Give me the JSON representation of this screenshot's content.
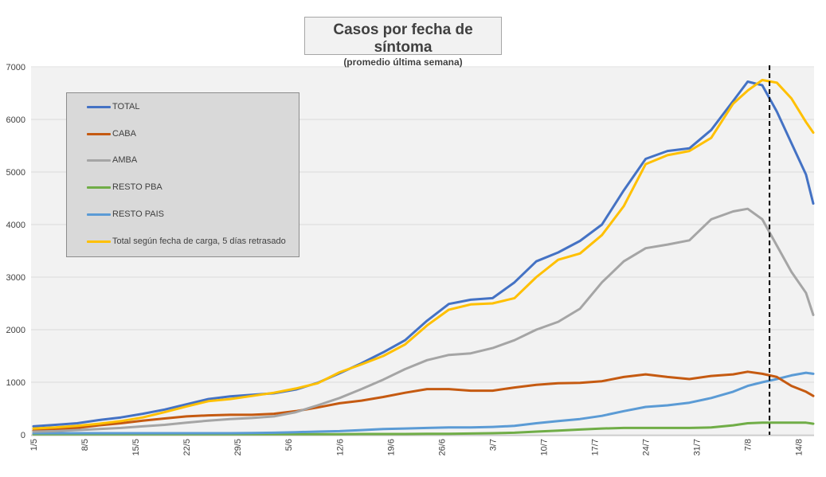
{
  "chart_data": {
    "type": "line",
    "title": "Casos por fecha de síntoma",
    "subtitle": "(promedio última semana)",
    "xlabel": "",
    "ylabel": "",
    "ylim": [
      0,
      7000
    ],
    "yticks": [
      "0",
      "1000",
      "2000",
      "3000",
      "4000",
      "5000",
      "6000",
      "7000"
    ],
    "x_range": [
      "1/5",
      "16/8"
    ],
    "xticks": [
      "1/5",
      "8/5",
      "15/5",
      "22/5",
      "29/5",
      "5/6",
      "12/6",
      "19/6",
      "26/6",
      "3/7",
      "10/7",
      "17/7",
      "24/7",
      "31/7",
      "7/8",
      "14/8"
    ],
    "grid": "horizontal",
    "legend_position": "top-left",
    "vertical_marker": "10/8",
    "x": [
      "1/5",
      "4/5",
      "7/5",
      "10/5",
      "13/5",
      "16/5",
      "19/5",
      "22/5",
      "25/5",
      "28/5",
      "31/5",
      "3/6",
      "6/6",
      "9/6",
      "12/6",
      "15/6",
      "18/6",
      "21/6",
      "24/6",
      "27/6",
      "30/6",
      "3/7",
      "6/7",
      "9/7",
      "12/7",
      "15/7",
      "18/7",
      "21/7",
      "24/7",
      "27/7",
      "30/7",
      "2/8",
      "5/8",
      "7/8",
      "9/8",
      "11/8",
      "13/8",
      "15/8",
      "16/8"
    ],
    "series": [
      {
        "name": "TOTAL",
        "color": "#4472c4",
        "values": [
          160,
          190,
          220,
          280,
          330,
          400,
          480,
          580,
          680,
          730,
          760,
          790,
          860,
          990,
          1170,
          1360,
          1570,
          1800,
          2170,
          2490,
          2570,
          2600,
          2900,
          3300,
          3470,
          3690,
          4000,
          4650,
          5250,
          5400,
          5450,
          5800,
          6350,
          6720,
          6650,
          6150,
          5550,
          4950,
          4400
        ]
      },
      {
        "name": "CABA",
        "color": "#c55a11",
        "values": [
          80,
          100,
          130,
          180,
          220,
          270,
          310,
          350,
          370,
          380,
          380,
          400,
          450,
          520,
          600,
          650,
          720,
          800,
          870,
          870,
          840,
          840,
          900,
          950,
          980,
          990,
          1020,
          1100,
          1150,
          1100,
          1060,
          1120,
          1150,
          1200,
          1160,
          1100,
          930,
          820,
          740
        ]
      },
      {
        "name": "AMBA",
        "color": "#a5a5a5",
        "values": [
          60,
          70,
          90,
          110,
          130,
          160,
          190,
          230,
          270,
          300,
          320,
          350,
          430,
          560,
          700,
          870,
          1050,
          1250,
          1420,
          1520,
          1550,
          1650,
          1800,
          2000,
          2150,
          2400,
          2900,
          3300,
          3550,
          3620,
          3700,
          4100,
          4250,
          4300,
          4100,
          3600,
          3100,
          2700,
          2280
        ]
      },
      {
        "name": "RESTO PBA",
        "color": "#70ad47",
        "values": [
          10,
          10,
          10,
          10,
          10,
          10,
          10,
          10,
          10,
          10,
          10,
          10,
          10,
          10,
          10,
          15,
          15,
          15,
          20,
          20,
          25,
          30,
          40,
          60,
          80,
          100,
          120,
          130,
          130,
          130,
          130,
          140,
          180,
          220,
          230,
          230,
          230,
          230,
          210
        ]
      },
      {
        "name": "RESTO PAIS",
        "color": "#5b9bd5",
        "values": [
          30,
          30,
          30,
          30,
          30,
          30,
          30,
          30,
          30,
          30,
          35,
          40,
          50,
          60,
          70,
          90,
          110,
          120,
          130,
          140,
          140,
          150,
          170,
          220,
          260,
          300,
          360,
          450,
          530,
          560,
          610,
          700,
          820,
          930,
          1000,
          1060,
          1130,
          1180,
          1160
        ]
      },
      {
        "name": "Total según fecha de carga, 5 días retrasado",
        "color": "#ffc000",
        "values": [
          120,
          140,
          170,
          210,
          260,
          330,
          430,
          540,
          640,
          680,
          740,
          800,
          880,
          980,
          1190,
          1340,
          1500,
          1720,
          2080,
          2380,
          2480,
          2500,
          2600,
          3000,
          3330,
          3450,
          3800,
          4350,
          5150,
          5320,
          5400,
          5650,
          6300,
          6550,
          6750,
          6700,
          6400,
          5950,
          5750
        ]
      }
    ]
  }
}
